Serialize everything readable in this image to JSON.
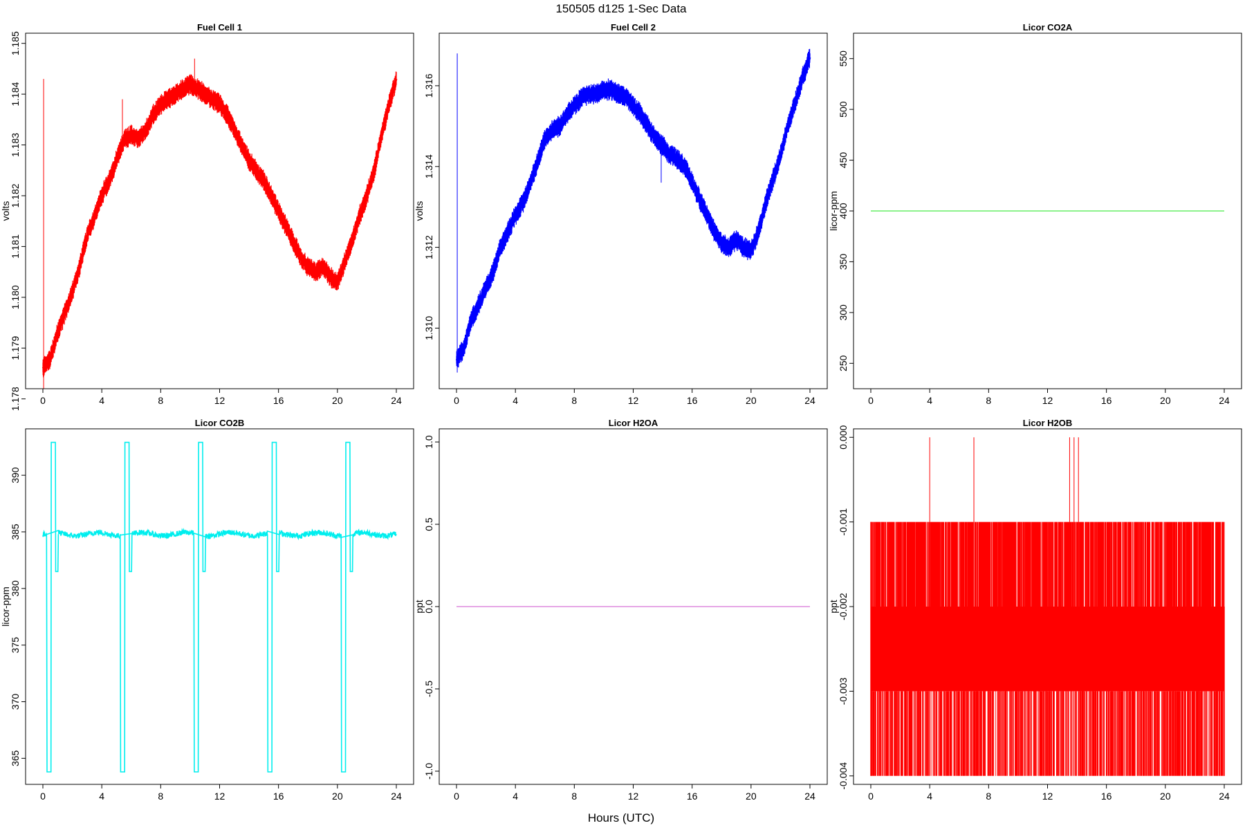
{
  "figure": {
    "title": "150505   d125   1-Sec Data",
    "xlabel": "Hours (UTC)"
  },
  "chart_data": [
    {
      "type": "line",
      "title": "Fuel Cell 1",
      "ylabel": "volts",
      "color": "#ff0000",
      "xlim": [
        0,
        24
      ],
      "ylim": [
        1.1782,
        1.1852
      ],
      "xticks": [
        "0",
        "4",
        "8",
        "12",
        "16",
        "20",
        "24"
      ],
      "yticks": [
        "1.178",
        "1.179",
        "1.180",
        "1.181",
        "1.182",
        "1.183",
        "1.184",
        "1.185"
      ],
      "band": 0.00022,
      "x": [
        0,
        0.5,
        1,
        1.5,
        2,
        2.5,
        3,
        3.5,
        4,
        4.5,
        5,
        5.5,
        6,
        6.5,
        7,
        7.5,
        8,
        8.5,
        9,
        9.5,
        10,
        10.5,
        11,
        11.5,
        12,
        12.5,
        13,
        13.5,
        14,
        14.5,
        15,
        15.5,
        16,
        16.5,
        17,
        17.5,
        18,
        18.5,
        19,
        19.5,
        20,
        20.5,
        21,
        21.5,
        22,
        22.5,
        23,
        23.5,
        24
      ],
      "y": [
        1.1786,
        1.1788,
        1.1793,
        1.1797,
        1.1801,
        1.1806,
        1.1812,
        1.1816,
        1.182,
        1.1823,
        1.1827,
        1.1831,
        1.1832,
        1.1831,
        1.1833,
        1.1836,
        1.1838,
        1.1839,
        1.184,
        1.1841,
        1.1842,
        1.1841,
        1.184,
        1.1839,
        1.1838,
        1.1836,
        1.1833,
        1.183,
        1.1827,
        1.1825,
        1.1823,
        1.182,
        1.1817,
        1.1814,
        1.1811,
        1.1808,
        1.1806,
        1.1805,
        1.1806,
        1.1804,
        1.1803,
        1.1807,
        1.1811,
        1.1816,
        1.182,
        1.1825,
        1.1832,
        1.1838,
        1.1843
      ],
      "spikes": [
        {
          "x": 0.05,
          "y": [
            1.1782,
            1.1843
          ]
        },
        {
          "x": 10.3,
          "y": [
            1.184,
            1.1847
          ]
        },
        {
          "x": 5.4,
          "y": [
            1.1829,
            1.1839
          ]
        }
      ]
    },
    {
      "type": "line",
      "title": "Fuel Cell 2",
      "ylabel": "volts",
      "color": "#0000ff",
      "xlim": [
        0,
        24
      ],
      "ylim": [
        1.3085,
        1.3173
      ],
      "xticks": [
        "0",
        "4",
        "8",
        "12",
        "16",
        "20",
        "24"
      ],
      "yticks": [
        "1.310",
        "1.312",
        "1.314",
        "1.316"
      ],
      "band": 0.00028,
      "x": [
        0,
        0.5,
        1,
        1.5,
        2,
        2.5,
        3,
        3.5,
        4,
        4.5,
        5,
        5.5,
        6,
        6.5,
        7,
        7.5,
        8,
        8.5,
        9,
        9.5,
        10,
        10.5,
        11,
        11.5,
        12,
        12.5,
        13,
        13.5,
        14,
        14.5,
        15,
        15.5,
        16,
        16.5,
        17,
        17.5,
        18,
        18.5,
        19,
        19.5,
        20,
        20.5,
        21,
        21.5,
        22,
        22.5,
        23,
        23.5,
        24
      ],
      "y": [
        1.3092,
        1.3095,
        1.3102,
        1.3106,
        1.311,
        1.3114,
        1.312,
        1.3124,
        1.3128,
        1.3131,
        1.3136,
        1.3141,
        1.3147,
        1.3149,
        1.315,
        1.3153,
        1.3155,
        1.3157,
        1.3158,
        1.3158,
        1.3159,
        1.3159,
        1.3158,
        1.3157,
        1.3155,
        1.3153,
        1.315,
        1.3147,
        1.3145,
        1.3143,
        1.3142,
        1.314,
        1.3136,
        1.3132,
        1.3128,
        1.3124,
        1.3121,
        1.312,
        1.3122,
        1.312,
        1.3119,
        1.3124,
        1.3131,
        1.3137,
        1.3143,
        1.315,
        1.3156,
        1.3162,
        1.3167
      ],
      "spikes": [
        {
          "x": 0.05,
          "y": [
            1.3089,
            1.3168
          ]
        },
        {
          "x": 13.9,
          "y": [
            1.3136,
            1.3146
          ]
        }
      ]
    },
    {
      "type": "line",
      "title": "Licor CO2A",
      "ylabel": "licor-ppm",
      "color": "#66ee66",
      "xlim": [
        0,
        24
      ],
      "ylim": [
        225,
        575
      ],
      "xticks": [
        "0",
        "4",
        "8",
        "12",
        "16",
        "20",
        "24"
      ],
      "yticks": [
        "250",
        "300",
        "350",
        "400",
        "450",
        "500",
        "550"
      ],
      "x": [
        0,
        24
      ],
      "y": [
        400,
        400
      ]
    },
    {
      "type": "line",
      "title": "Licor CO2B",
      "ylabel": "licor-ppm",
      "color": "#00eeee",
      "xlim": [
        0,
        24
      ],
      "ylim": [
        362.7,
        394.1
      ],
      "xticks": [
        "0",
        "4",
        "8",
        "12",
        "16",
        "20",
        "24"
      ],
      "yticks": [
        "365",
        "370",
        "375",
        "380",
        "385",
        "390"
      ],
      "baseline": 384.8,
      "calibrations": [
        0.3,
        5.3,
        10.3,
        15.3,
        20.3
      ],
      "levels": {
        "high": 392.9,
        "low": 363.8,
        "mid": 381.5
      }
    },
    {
      "type": "line",
      "title": "Licor H2OA",
      "ylabel": "ppt",
      "color": "#dd88dd",
      "xlim": [
        0,
        24
      ],
      "ylim": [
        -1.08,
        1.08
      ],
      "xticks": [
        "0",
        "4",
        "8",
        "12",
        "16",
        "20",
        "24"
      ],
      "yticks": [
        "-1.0",
        "-0.5",
        "0.0",
        "0.5",
        "1.0"
      ],
      "x": [
        0,
        24
      ],
      "y": [
        0,
        0
      ]
    },
    {
      "type": "line",
      "title": "Licor H2OB",
      "ylabel": "ppt",
      "color": "#ff0000",
      "xlim": [
        0,
        24
      ],
      "ylim": [
        -0.0041,
        0.0001
      ],
      "xticks": [
        "0",
        "4",
        "8",
        "12",
        "16",
        "20",
        "24"
      ],
      "yticks": [
        "-0.004",
        "-0.003",
        "-0.002",
        "-0.001",
        "0.000"
      ],
      "dense": {
        "from": -0.003,
        "to": -0.002
      },
      "levels": [
        -0.004,
        -0.003,
        -0.002,
        -0.001
      ],
      "peaks_at_zero": [
        4.0,
        7.0,
        13.5,
        13.8,
        14.1
      ]
    }
  ]
}
